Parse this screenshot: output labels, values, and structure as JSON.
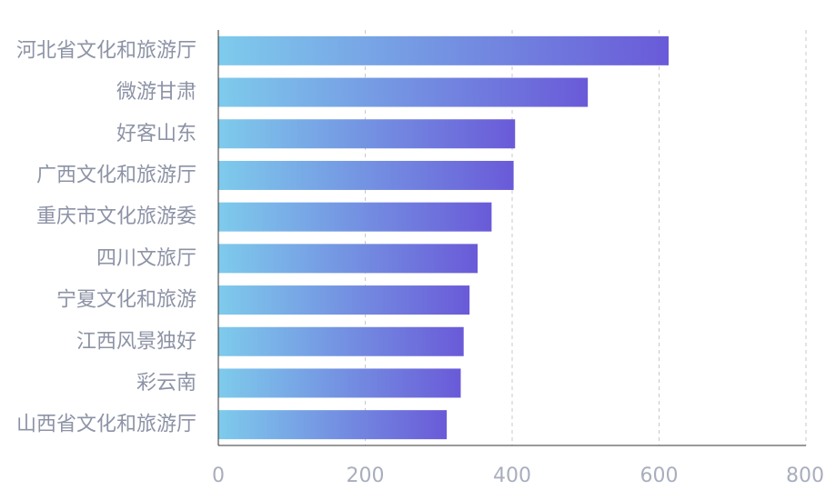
{
  "chart_data": {
    "type": "bar",
    "orientation": "horizontal",
    "categories": [
      "河北省文化和旅游厅",
      "微游甘肃",
      "好客山东",
      "广西文化和旅游厅",
      "重庆市文化旅游委",
      "四川文旅厅",
      "宁夏文化和旅游",
      "江西风景独好",
      "彩云南",
      "山西省文化和旅游厅"
    ],
    "values": [
      613,
      503,
      404,
      402,
      372,
      353,
      342,
      334,
      330,
      311
    ],
    "xlim": [
      0,
      800
    ],
    "x_ticks": [
      0,
      200,
      400,
      600,
      800
    ],
    "grid": "vertical-dashed",
    "bar_gradient": [
      "#7ecbec",
      "#6a5ad8"
    ],
    "label_color": "#8d93a6",
    "tick_color": "#a9aebd",
    "axis_color": "#333333",
    "grid_color": "#c8c8c8",
    "title": "",
    "xlabel": "",
    "ylabel": ""
  }
}
